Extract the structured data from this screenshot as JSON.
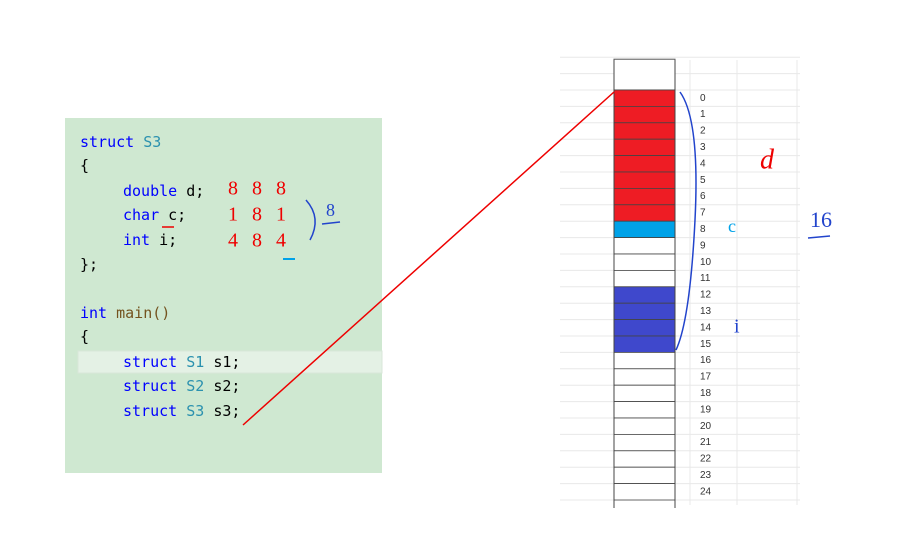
{
  "code": {
    "lines": [
      [
        "struct",
        "S3"
      ],
      [
        "{"
      ],
      [
        "double",
        "d;"
      ],
      [
        "char",
        "c;"
      ],
      [
        "int",
        "i;"
      ],
      [
        "};"
      ],
      [
        "int",
        "main()"
      ],
      [
        "{"
      ],
      [
        "struct",
        "S1",
        "s1;"
      ],
      [
        "struct",
        "S2",
        "s2;"
      ],
      [
        "struct",
        "S3",
        "s3;"
      ]
    ]
  },
  "annotations": {
    "sizes": [
      [
        8,
        8,
        8
      ],
      [
        1,
        8,
        1
      ],
      [
        4,
        8,
        4
      ]
    ],
    "max_align": 8
  },
  "memory": {
    "offsets": [
      0,
      1,
      2,
      3,
      4,
      5,
      6,
      7,
      8,
      9,
      10,
      11,
      12,
      13,
      14,
      15,
      16,
      17,
      18,
      19,
      20,
      21,
      22,
      23,
      24
    ],
    "labels": {
      "d": "d",
      "c": "c",
      "i": "i"
    },
    "total": 16
  }
}
